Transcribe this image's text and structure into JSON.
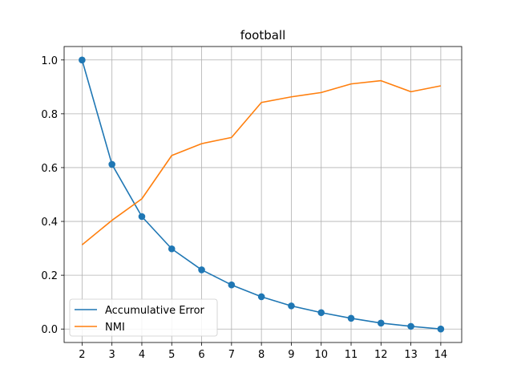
{
  "chart_data": {
    "type": "line",
    "title": "football",
    "xlabel": "",
    "ylabel": "",
    "x": [
      2,
      3,
      4,
      5,
      6,
      7,
      8,
      9,
      10,
      11,
      12,
      13,
      14
    ],
    "xlim": [
      1.4,
      14.7
    ],
    "ylim": [
      -0.05,
      1.05
    ],
    "x_ticks": [
      "2",
      "3",
      "4",
      "5",
      "6",
      "7",
      "8",
      "9",
      "10",
      "11",
      "12",
      "13",
      "14"
    ],
    "y_ticks": [
      "0.0",
      "0.2",
      "0.4",
      "0.6",
      "0.8",
      "1.0"
    ],
    "y_tick_values": [
      0.0,
      0.2,
      0.4,
      0.6,
      0.8,
      1.0
    ],
    "grid": true,
    "legend_position": "lower-left",
    "series": [
      {
        "name": "Accumulative Error",
        "color": "#1f77b4",
        "markers": true,
        "values": [
          1.0,
          0.612,
          0.418,
          0.298,
          0.22,
          0.164,
          0.12,
          0.086,
          0.061,
          0.04,
          0.022,
          0.01,
          0.0
        ]
      },
      {
        "name": "NMI",
        "color": "#ff7f0e",
        "markers": false,
        "values": [
          0.313,
          0.404,
          0.484,
          0.645,
          0.689,
          0.712,
          0.842,
          0.863,
          0.879,
          0.911,
          0.923,
          0.882,
          0.904
        ]
      }
    ]
  }
}
